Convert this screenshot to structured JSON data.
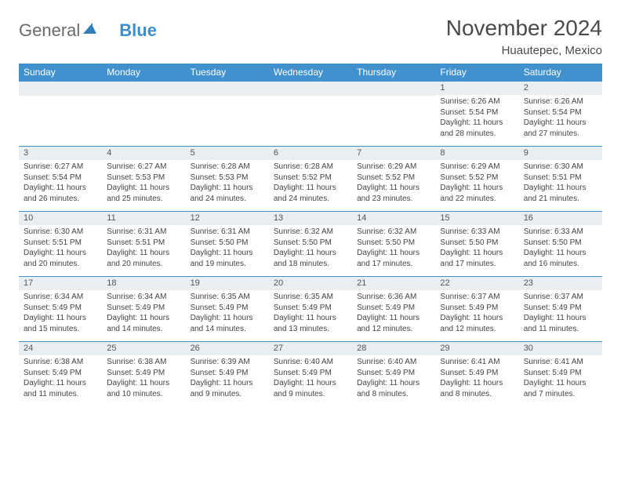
{
  "brand": {
    "part1": "General",
    "part2": "Blue"
  },
  "title": "November 2024",
  "location": "Huautepec, Mexico",
  "colors": {
    "header_bg": "#4091ce",
    "header_text": "#ffffff",
    "daynum_bg": "#e9eef2",
    "border": "#4091ce",
    "text": "#444444",
    "brand_grey": "#6a6a6a",
    "brand_blue": "#3c8fc9"
  },
  "weekdays": [
    "Sunday",
    "Monday",
    "Tuesday",
    "Wednesday",
    "Thursday",
    "Friday",
    "Saturday"
  ],
  "weeks": [
    [
      null,
      null,
      null,
      null,
      null,
      {
        "n": "1",
        "sunrise": "6:26 AM",
        "sunset": "5:54 PM",
        "dl1": "Daylight: 11 hours",
        "dl2": "and 28 minutes."
      },
      {
        "n": "2",
        "sunrise": "6:26 AM",
        "sunset": "5:54 PM",
        "dl1": "Daylight: 11 hours",
        "dl2": "and 27 minutes."
      }
    ],
    [
      {
        "n": "3",
        "sunrise": "6:27 AM",
        "sunset": "5:54 PM",
        "dl1": "Daylight: 11 hours",
        "dl2": "and 26 minutes."
      },
      {
        "n": "4",
        "sunrise": "6:27 AM",
        "sunset": "5:53 PM",
        "dl1": "Daylight: 11 hours",
        "dl2": "and 25 minutes."
      },
      {
        "n": "5",
        "sunrise": "6:28 AM",
        "sunset": "5:53 PM",
        "dl1": "Daylight: 11 hours",
        "dl2": "and 24 minutes."
      },
      {
        "n": "6",
        "sunrise": "6:28 AM",
        "sunset": "5:52 PM",
        "dl1": "Daylight: 11 hours",
        "dl2": "and 24 minutes."
      },
      {
        "n": "7",
        "sunrise": "6:29 AM",
        "sunset": "5:52 PM",
        "dl1": "Daylight: 11 hours",
        "dl2": "and 23 minutes."
      },
      {
        "n": "8",
        "sunrise": "6:29 AM",
        "sunset": "5:52 PM",
        "dl1": "Daylight: 11 hours",
        "dl2": "and 22 minutes."
      },
      {
        "n": "9",
        "sunrise": "6:30 AM",
        "sunset": "5:51 PM",
        "dl1": "Daylight: 11 hours",
        "dl2": "and 21 minutes."
      }
    ],
    [
      {
        "n": "10",
        "sunrise": "6:30 AM",
        "sunset": "5:51 PM",
        "dl1": "Daylight: 11 hours",
        "dl2": "and 20 minutes."
      },
      {
        "n": "11",
        "sunrise": "6:31 AM",
        "sunset": "5:51 PM",
        "dl1": "Daylight: 11 hours",
        "dl2": "and 20 minutes."
      },
      {
        "n": "12",
        "sunrise": "6:31 AM",
        "sunset": "5:50 PM",
        "dl1": "Daylight: 11 hours",
        "dl2": "and 19 minutes."
      },
      {
        "n": "13",
        "sunrise": "6:32 AM",
        "sunset": "5:50 PM",
        "dl1": "Daylight: 11 hours",
        "dl2": "and 18 minutes."
      },
      {
        "n": "14",
        "sunrise": "6:32 AM",
        "sunset": "5:50 PM",
        "dl1": "Daylight: 11 hours",
        "dl2": "and 17 minutes."
      },
      {
        "n": "15",
        "sunrise": "6:33 AM",
        "sunset": "5:50 PM",
        "dl1": "Daylight: 11 hours",
        "dl2": "and 17 minutes."
      },
      {
        "n": "16",
        "sunrise": "6:33 AM",
        "sunset": "5:50 PM",
        "dl1": "Daylight: 11 hours",
        "dl2": "and 16 minutes."
      }
    ],
    [
      {
        "n": "17",
        "sunrise": "6:34 AM",
        "sunset": "5:49 PM",
        "dl1": "Daylight: 11 hours",
        "dl2": "and 15 minutes."
      },
      {
        "n": "18",
        "sunrise": "6:34 AM",
        "sunset": "5:49 PM",
        "dl1": "Daylight: 11 hours",
        "dl2": "and 14 minutes."
      },
      {
        "n": "19",
        "sunrise": "6:35 AM",
        "sunset": "5:49 PM",
        "dl1": "Daylight: 11 hours",
        "dl2": "and 14 minutes."
      },
      {
        "n": "20",
        "sunrise": "6:35 AM",
        "sunset": "5:49 PM",
        "dl1": "Daylight: 11 hours",
        "dl2": "and 13 minutes."
      },
      {
        "n": "21",
        "sunrise": "6:36 AM",
        "sunset": "5:49 PM",
        "dl1": "Daylight: 11 hours",
        "dl2": "and 12 minutes."
      },
      {
        "n": "22",
        "sunrise": "6:37 AM",
        "sunset": "5:49 PM",
        "dl1": "Daylight: 11 hours",
        "dl2": "and 12 minutes."
      },
      {
        "n": "23",
        "sunrise": "6:37 AM",
        "sunset": "5:49 PM",
        "dl1": "Daylight: 11 hours",
        "dl2": "and 11 minutes."
      }
    ],
    [
      {
        "n": "24",
        "sunrise": "6:38 AM",
        "sunset": "5:49 PM",
        "dl1": "Daylight: 11 hours",
        "dl2": "and 11 minutes."
      },
      {
        "n": "25",
        "sunrise": "6:38 AM",
        "sunset": "5:49 PM",
        "dl1": "Daylight: 11 hours",
        "dl2": "and 10 minutes."
      },
      {
        "n": "26",
        "sunrise": "6:39 AM",
        "sunset": "5:49 PM",
        "dl1": "Daylight: 11 hours",
        "dl2": "and 9 minutes."
      },
      {
        "n": "27",
        "sunrise": "6:40 AM",
        "sunset": "5:49 PM",
        "dl1": "Daylight: 11 hours",
        "dl2": "and 9 minutes."
      },
      {
        "n": "28",
        "sunrise": "6:40 AM",
        "sunset": "5:49 PM",
        "dl1": "Daylight: 11 hours",
        "dl2": "and 8 minutes."
      },
      {
        "n": "29",
        "sunrise": "6:41 AM",
        "sunset": "5:49 PM",
        "dl1": "Daylight: 11 hours",
        "dl2": "and 8 minutes."
      },
      {
        "n": "30",
        "sunrise": "6:41 AM",
        "sunset": "5:49 PM",
        "dl1": "Daylight: 11 hours",
        "dl2": "and 7 minutes."
      }
    ]
  ]
}
